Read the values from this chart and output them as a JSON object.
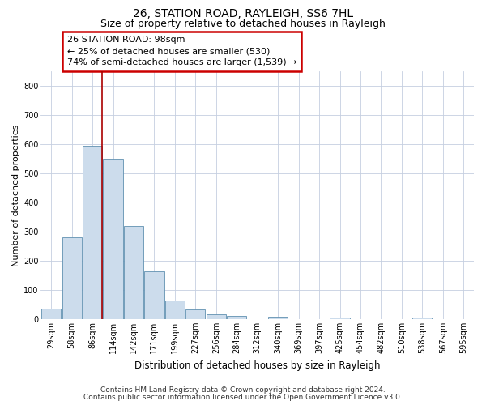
{
  "title1": "26, STATION ROAD, RAYLEIGH, SS6 7HL",
  "title2": "Size of property relative to detached houses in Rayleigh",
  "xlabel": "Distribution of detached houses by size in Rayleigh",
  "ylabel": "Number of detached properties",
  "categories": [
    "29sqm",
    "58sqm",
    "86sqm",
    "114sqm",
    "142sqm",
    "171sqm",
    "199sqm",
    "227sqm",
    "256sqm",
    "284sqm",
    "312sqm",
    "340sqm",
    "369sqm",
    "397sqm",
    "425sqm",
    "454sqm",
    "482sqm",
    "510sqm",
    "538sqm",
    "567sqm",
    "595sqm"
  ],
  "values": [
    35,
    280,
    595,
    550,
    320,
    165,
    65,
    32,
    17,
    10,
    0,
    8,
    0,
    0,
    6,
    0,
    0,
    0,
    6,
    0,
    0
  ],
  "bar_color": "#ccdcec",
  "bar_edge_color": "#6090b0",
  "grid_color": "#c5cfe0",
  "vline_x": 2.45,
  "vline_color": "#aa0000",
  "annotation_text": "26 STATION ROAD: 98sqm\n← 25% of detached houses are smaller (530)\n74% of semi-detached houses are larger (1,539) →",
  "annotation_box_color": "#cc0000",
  "annotation_text_color": "#000000",
  "ylim": [
    0,
    850
  ],
  "yticks": [
    0,
    100,
    200,
    300,
    400,
    500,
    600,
    700,
    800
  ],
  "footer1": "Contains HM Land Registry data © Crown copyright and database right 2024.",
  "footer2": "Contains public sector information licensed under the Open Government Licence v3.0.",
  "bg_color": "#ffffff",
  "title1_fontsize": 10,
  "title2_fontsize": 9,
  "xlabel_fontsize": 8.5,
  "ylabel_fontsize": 8,
  "tick_fontsize": 7,
  "footer_fontsize": 6.5,
  "ann_fontsize": 8
}
